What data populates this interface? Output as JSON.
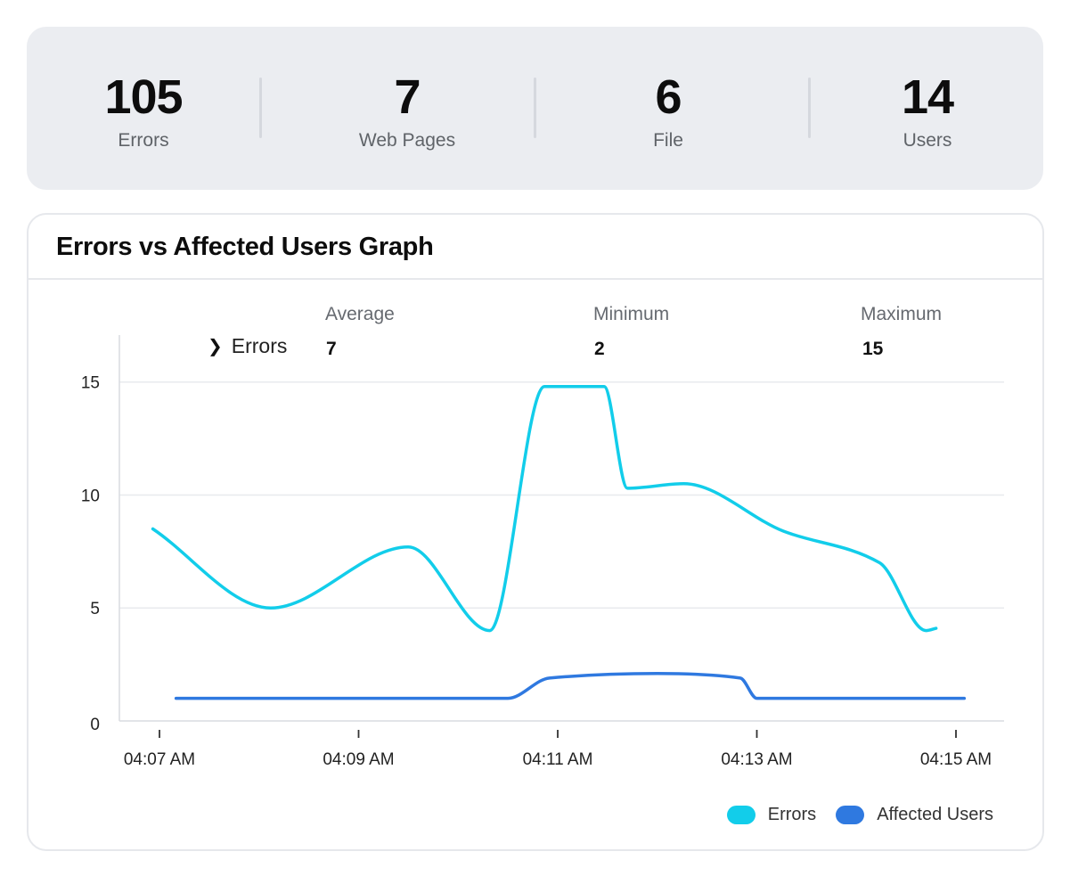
{
  "stats": [
    {
      "value": "105",
      "label": "Errors"
    },
    {
      "value": "7",
      "label": "Web Pages"
    },
    {
      "value": "6",
      "label": "File"
    },
    {
      "value": "14",
      "label": "Users"
    }
  ],
  "card": {
    "title": "Errors vs Affected Users Graph"
  },
  "summary": {
    "series_label": "Errors",
    "headers": {
      "average": "Average",
      "minimum": "Minimum",
      "maximum": "Maximum"
    },
    "values": {
      "average": "7",
      "minimum": "2",
      "maximum": "15"
    }
  },
  "colors": {
    "errors": "#12cdea",
    "affected_users": "#2f79e0",
    "grid": "#e8eaee",
    "axis": "#d9dce1"
  },
  "chart_data": {
    "type": "line",
    "title": "Errors vs Affected Users Graph",
    "xlabel": "",
    "ylabel": "",
    "x_ticks": [
      "04:07 AM",
      "04:09 AM",
      "04:11 AM",
      "04:13 AM",
      "04:15 AM"
    ],
    "x_range": [
      "04:07 AM",
      "04:15 AM"
    ],
    "ylim": [
      0,
      17
    ],
    "y_ticks": [
      0,
      5,
      10,
      15
    ],
    "grid": true,
    "legend_position": "bottom-right",
    "series": [
      {
        "name": "Errors",
        "color": "#12cdea",
        "points": [
          {
            "x": "04:06:56 AM",
            "y": 8.5
          },
          {
            "x": "04:08:07 AM",
            "y": 5.0
          },
          {
            "x": "04:09:30 AM",
            "y": 7.7
          },
          {
            "x": "04:10:19 AM",
            "y": 4.0
          },
          {
            "x": "04:10:52 AM",
            "y": 14.8
          },
          {
            "x": "04:11:28 AM",
            "y": 14.8
          },
          {
            "x": "04:11:42 AM",
            "y": 10.3
          },
          {
            "x": "04:12:16 AM",
            "y": 10.5
          },
          {
            "x": "04:13:16 AM",
            "y": 8.4
          },
          {
            "x": "04:14:14 AM",
            "y": 7.0
          },
          {
            "x": "04:14:42 AM",
            "y": 4.0
          },
          {
            "x": "04:14:48 AM",
            "y": 4.1
          }
        ]
      },
      {
        "name": "Affected Users",
        "color": "#2f79e0",
        "points": [
          {
            "x": "04:07:10 AM",
            "y": 1
          },
          {
            "x": "04:10:30 AM",
            "y": 1
          },
          {
            "x": "04:10:55 AM",
            "y": 1.9
          },
          {
            "x": "04:12:00 AM",
            "y": 2.1
          },
          {
            "x": "04:12:50 AM",
            "y": 1.9
          },
          {
            "x": "04:13:00 AM",
            "y": 1
          },
          {
            "x": "04:15:05 AM",
            "y": 1
          }
        ]
      }
    ]
  }
}
